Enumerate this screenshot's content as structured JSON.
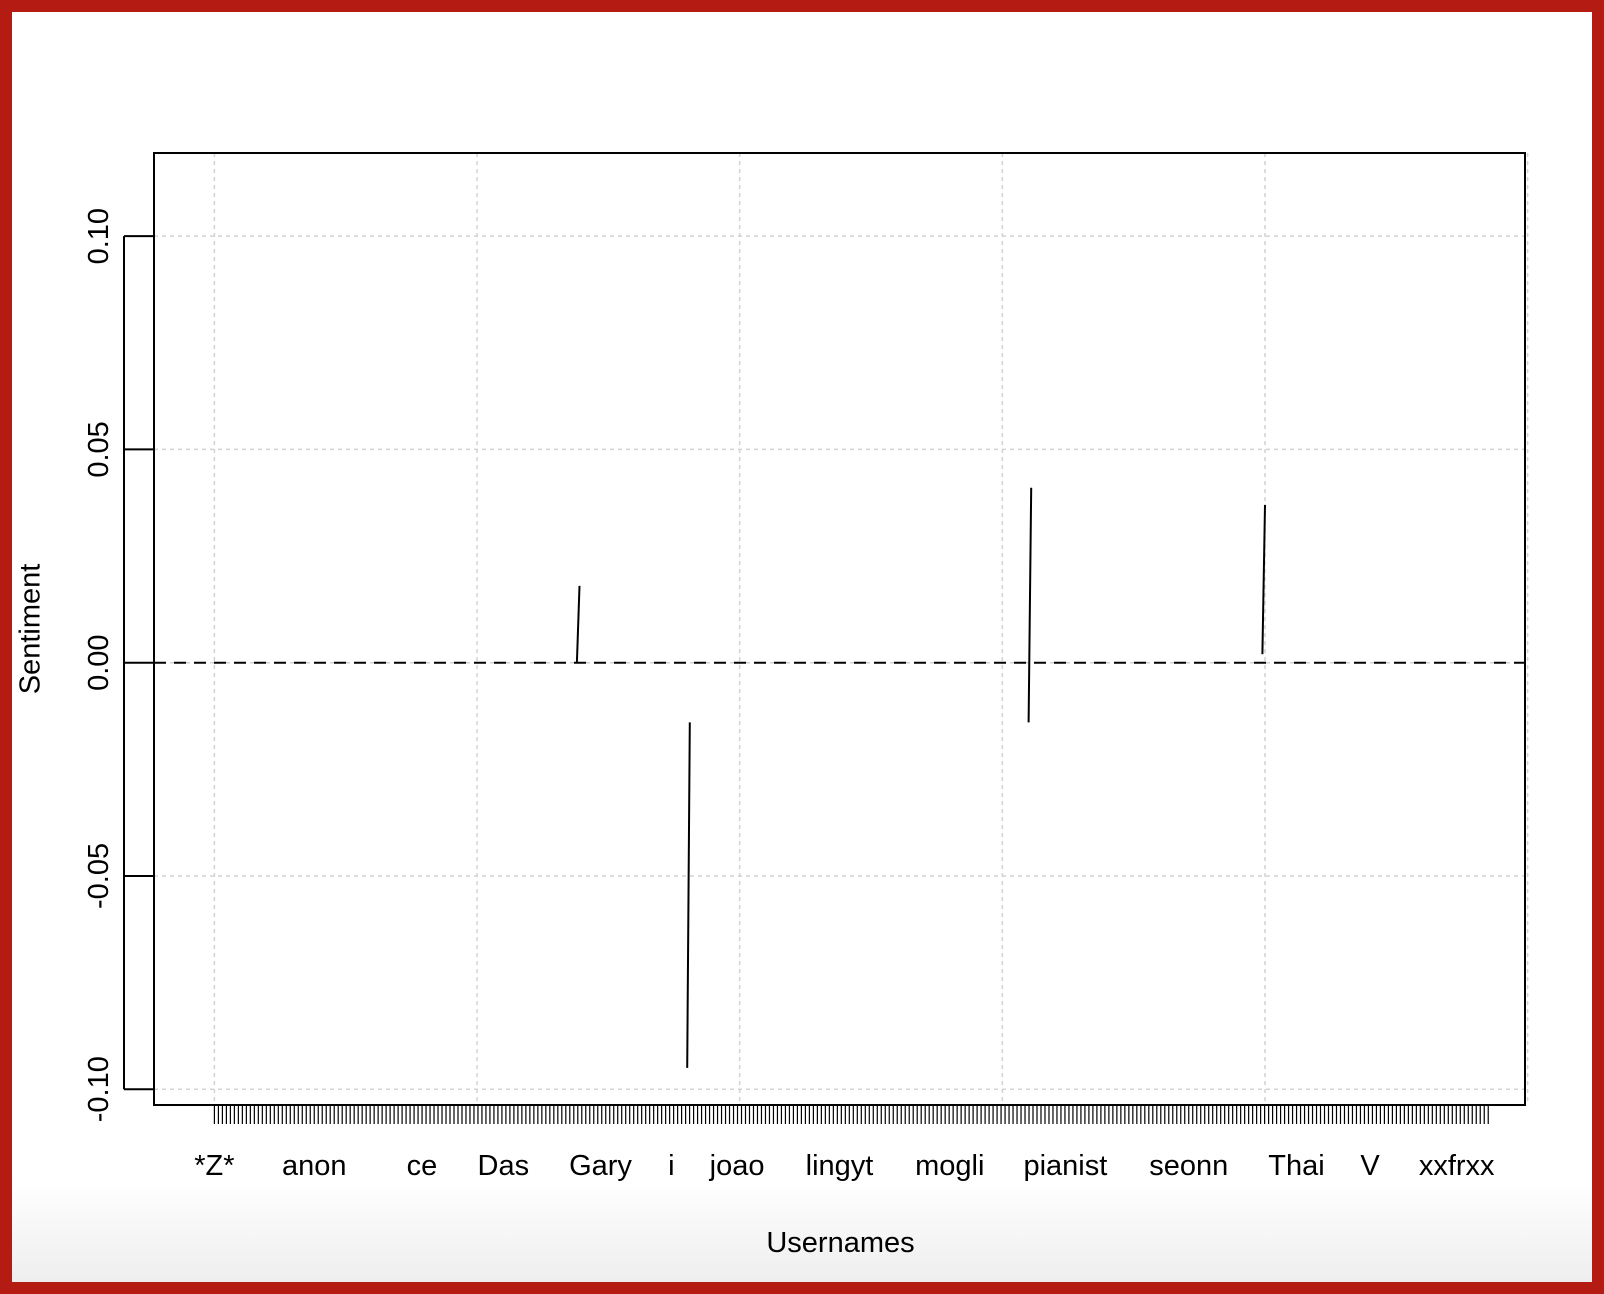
{
  "colors": {
    "frame": "#b31b13",
    "grid": "#d3d3d3",
    "lines": "#000000"
  },
  "chart_data": {
    "type": "line",
    "title": "",
    "xlabel": "Usernames",
    "ylabel": "Sentiment",
    "ylim": [
      -0.1037,
      0.1195
    ],
    "yticks": [
      {
        "value": -0.1,
        "label": "-0.10"
      },
      {
        "value": -0.05,
        "label": "-0.05"
      },
      {
        "value": 0.0,
        "label": "0.00"
      },
      {
        "value": 0.05,
        "label": "0.05"
      },
      {
        "value": 0.1,
        "label": "0.10"
      }
    ],
    "xlim": [
      0.77,
      5.99
    ],
    "xticks": [
      {
        "x": 1.0,
        "label": "*Z*"
      },
      {
        "x": 1.38,
        "label": "anon"
      },
      {
        "x": 1.79,
        "label": "ce"
      },
      {
        "x": 2.1,
        "label": "Das"
      },
      {
        "x": 2.47,
        "label": "Gary"
      },
      {
        "x": 2.74,
        "label": "i"
      },
      {
        "x": 2.99,
        "label": "joao"
      },
      {
        "x": 3.38,
        "label": "lingyt"
      },
      {
        "x": 3.8,
        "label": "mogli"
      },
      {
        "x": 4.24,
        "label": "pianist"
      },
      {
        "x": 4.71,
        "label": "seonn"
      },
      {
        "x": 5.12,
        "label": "Thai"
      },
      {
        "x": 5.4,
        "label": "V"
      },
      {
        "x": 5.73,
        "label": "xxfrxx"
      }
    ],
    "xgrid": [
      1,
      2,
      3,
      4,
      5,
      6
    ],
    "grid": true,
    "reference_line": {
      "y": 0,
      "style": "dashed"
    },
    "rug": {
      "from": 1.0,
      "to": 5.85,
      "count": 320
    },
    "series": [
      {
        "x": [
          2.38,
          2.39
        ],
        "y": [
          0.0,
          0.018
        ]
      },
      {
        "x": [
          2.8,
          2.81
        ],
        "y": [
          -0.095,
          -0.014
        ]
      },
      {
        "x": [
          4.1,
          4.11
        ],
        "y": [
          -0.014,
          0.041
        ]
      },
      {
        "x": [
          4.99,
          5.0
        ],
        "y": [
          0.002,
          0.037
        ]
      }
    ]
  }
}
